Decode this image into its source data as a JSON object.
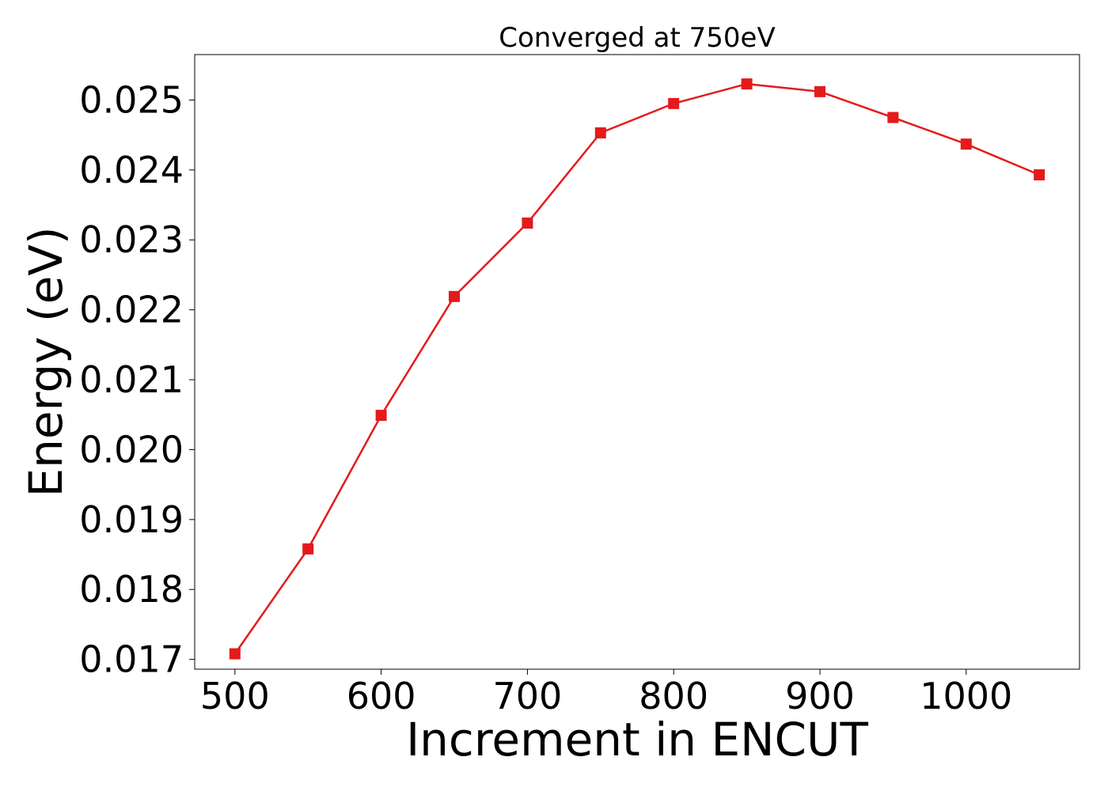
{
  "chart_data": {
    "type": "line",
    "title": "Converged at 750eV",
    "xlabel": "Increment in ENCUT",
    "ylabel": "Energy (eV)",
    "xlim": [
      472.5,
      1077.5
    ],
    "ylim": [
      0.01686,
      0.02565
    ],
    "xticks": [
      500,
      600,
      700,
      800,
      900,
      1000
    ],
    "xtick_labels": [
      "500",
      "600",
      "700",
      "800",
      "900",
      "1000"
    ],
    "yticks": [
      0.017,
      0.018,
      0.019,
      0.02,
      0.021,
      0.022,
      0.023,
      0.024,
      0.025
    ],
    "ytick_labels": [
      "0.017",
      "0.018",
      "0.019",
      "0.020",
      "0.021",
      "0.022",
      "0.023",
      "0.024",
      "0.025"
    ],
    "grid": false,
    "series": [
      {
        "color": "#e41a1c",
        "marker": "square",
        "x": [
          500,
          550,
          600,
          650,
          700,
          750,
          800,
          850,
          900,
          950,
          1000,
          1050
        ],
        "y": [
          0.01708,
          0.01858,
          0.02049,
          0.02219,
          0.02324,
          0.02453,
          0.02495,
          0.02523,
          0.02512,
          0.02475,
          0.02437,
          0.02393
        ]
      }
    ]
  }
}
